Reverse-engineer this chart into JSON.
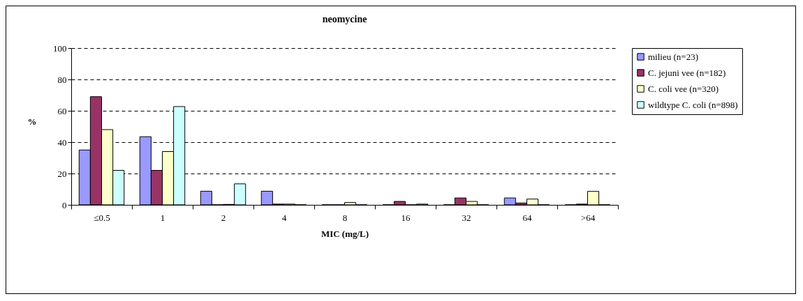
{
  "chart_data": {
    "type": "bar",
    "title": "neomycine",
    "xlabel": "MIC (mg/L)",
    "ylabel": "%",
    "categories": [
      "≤0.5",
      "1",
      "2",
      "4",
      "8",
      "16",
      "32",
      "64",
      ">64"
    ],
    "series": [
      {
        "name": "milieu (n=23)",
        "color": "#9999ff",
        "values": [
          35,
          43.5,
          8.7,
          8.7,
          0,
          0,
          0,
          4.4,
          0
        ]
      },
      {
        "name": "C. jejuni vee (n=182)",
        "color": "#993366",
        "values": [
          69,
          22,
          0,
          0.5,
          0,
          2.2,
          4.4,
          1.2,
          0.5
        ]
      },
      {
        "name": "C. coli vee (n=320)",
        "color": "#ffffcc",
        "values": [
          48,
          34,
          0.3,
          0.5,
          1.5,
          0,
          2.2,
          3.7,
          8.6
        ]
      },
      {
        "name": "wildtype C. coli (n=898)",
        "color": "#ccffff",
        "values": [
          22,
          62.7,
          13.4,
          0,
          0,
          0.5,
          0,
          0,
          0
        ]
      }
    ],
    "ylim": [
      0,
      100
    ],
    "yticks": [
      0,
      20,
      40,
      60,
      80,
      100
    ],
    "grid": "y",
    "legend": "right"
  }
}
